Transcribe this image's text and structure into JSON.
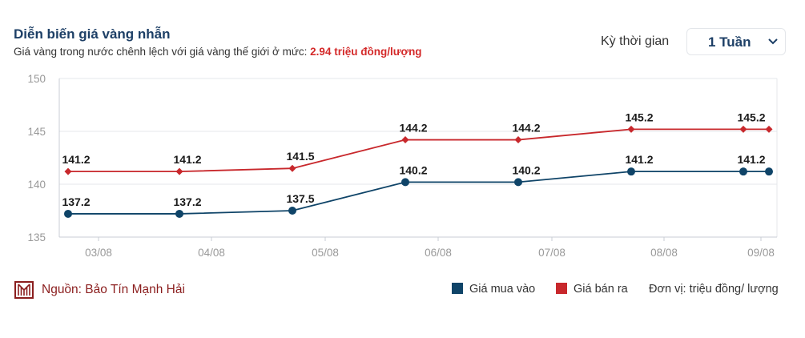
{
  "header": {
    "title": "Diễn biến giá vàng nhẫn",
    "subtitle_prefix": "Giá vàng trong nước chênh lệch với giá vàng thế giới ở mức: ",
    "subtitle_highlight": "2.94 triệu đồng/lượng",
    "period_label": "Kỳ thời gian",
    "period_value": "1 Tuần"
  },
  "footer": {
    "source": "Nguồn: Bảo Tín Mạnh Hải",
    "legend_buy": "Giá mua vào",
    "legend_sell": "Giá bán ra",
    "unit": "Đơn vị: triệu đồng/ lượng"
  },
  "chart_data": {
    "type": "line",
    "x_ticks": [
      "03/08",
      "04/08",
      "05/08",
      "06/08",
      "07/08",
      "08/08",
      "09/08"
    ],
    "y_ticks": [
      135,
      140,
      145,
      150
    ],
    "ylim": [
      135,
      150
    ],
    "grid": true,
    "series": [
      {
        "name": "Giá bán ra",
        "color": "#c8282c",
        "marker": "diamond",
        "values": [
          141.2,
          141.2,
          141.5,
          144.2,
          144.2,
          145.2,
          145.2,
          145.2
        ],
        "labels": [
          "141.2",
          "141.2",
          "141.5",
          "144.2",
          "144.2",
          "145.2",
          "145.2",
          ""
        ]
      },
      {
        "name": "Giá mua vào",
        "color": "#0f4468",
        "marker": "circle",
        "values": [
          137.2,
          137.2,
          137.5,
          140.2,
          140.2,
          141.2,
          141.2,
          141.2
        ],
        "labels": [
          "137.2",
          "137.2",
          "137.5",
          "140.2",
          "140.2",
          "141.2",
          "141.2",
          ""
        ]
      }
    ]
  }
}
